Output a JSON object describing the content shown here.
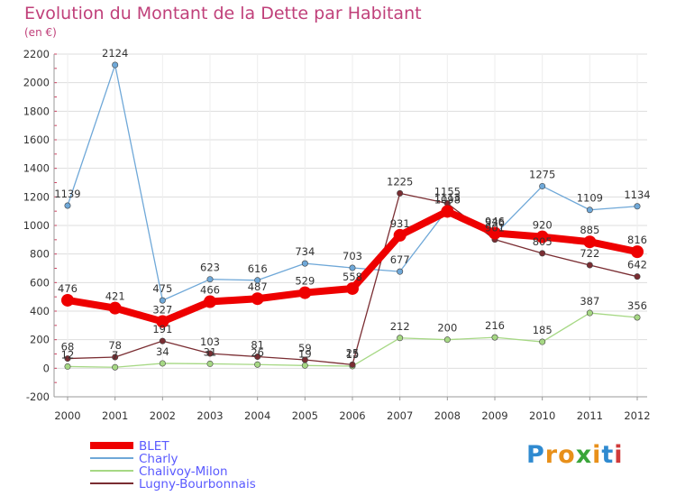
{
  "chart_data": {
    "type": "line",
    "title": "Evolution du Montant de la Dette par Habitant",
    "subtitle": "(en €)",
    "xlabel": "",
    "ylabel": "",
    "categories": [
      "2000",
      "2001",
      "2002",
      "2003",
      "2004",
      "2005",
      "2006",
      "2007",
      "2008",
      "2009",
      "2010",
      "2011",
      "2012"
    ],
    "ylim": [
      -200,
      2200
    ],
    "yticks": [
      -200,
      0,
      200,
      400,
      600,
      800,
      1000,
      1200,
      1400,
      1600,
      1800,
      2000,
      2200
    ],
    "grid": true,
    "legend_position": "bottom-left",
    "series": [
      {
        "name": "BLET",
        "color": "#ee0000",
        "values": [
          476,
          421,
          327,
          466,
          487,
          529,
          558,
          931,
          1098,
          946,
          920,
          885,
          816
        ]
      },
      {
        "name": "Charly",
        "color": "#6fa8d8",
        "values": [
          1139,
          2124,
          475,
          623,
          616,
          734,
          703,
          677,
          1113,
          936,
          1275,
          1109,
          1134
        ]
      },
      {
        "name": "Chalivoy-Milon",
        "color": "#a6d884",
        "values": [
          12,
          7,
          34,
          31,
          26,
          19,
          15,
          212,
          200,
          216,
          185,
          387,
          356
        ]
      },
      {
        "name": "Lugny-Bourbonnais",
        "color": "#7a2d32",
        "values": [
          68,
          78,
          191,
          103,
          81,
          59,
          25,
          1225,
          1155,
          901,
          805,
          722,
          642
        ]
      }
    ]
  },
  "brand": {
    "logo_letters": [
      "P",
      "r",
      "o",
      "x",
      "i",
      "t",
      "i"
    ],
    "logo_colors": [
      "#2f8ad0",
      "#e8901a",
      "#e8901a",
      "#3aa53a",
      "#e8901a",
      "#2f8ad0",
      "#d03a3a"
    ]
  }
}
